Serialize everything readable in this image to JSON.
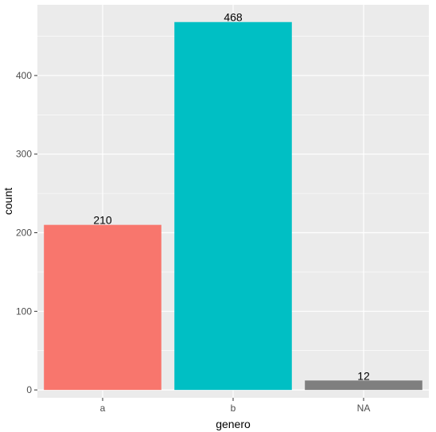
{
  "chart_data": {
    "type": "bar",
    "categories": [
      "a",
      "b",
      "NA"
    ],
    "values": [
      210,
      468,
      12
    ],
    "data_labels": [
      "210",
      "468",
      "12"
    ],
    "colors": [
      "#F8766D",
      "#00BFC4",
      "#7F7F7F"
    ],
    "xlabel": "genero",
    "ylabel": "count",
    "ylim": [
      -10,
      490
    ],
    "yticks": [
      0,
      100,
      200,
      300,
      400
    ],
    "ytick_labels": [
      "0",
      "100",
      "200",
      "300",
      "400"
    ],
    "grid": true,
    "panel_background": "#EBEBEB",
    "grid_color": "#FFFFFF"
  }
}
